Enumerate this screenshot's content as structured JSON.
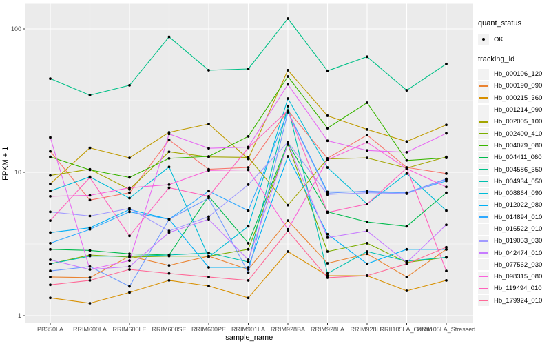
{
  "legend": {
    "quant_status_title": "quant_status",
    "quant_status_items": [
      {
        "label": "OK",
        "marker": "point-icon",
        "marker_color": "#000000"
      }
    ],
    "tracking_title": "tracking_id"
  },
  "colors": {
    "panel_background": "#EBEBEB",
    "grid": "#FFFFFF",
    "tick_text": "#4D4D4D",
    "axis_title_text": "#000000",
    "tick_mark": "#333333",
    "point": "#000000",
    "legend_key_background": "#F2F2F2"
  },
  "chart_data": {
    "type": "line",
    "title": "",
    "xlabel": "sample_name",
    "ylabel": "FPKM + 1",
    "y_scale": "log10",
    "ylim": [
      0.88,
      151
    ],
    "y_major_ticks": [
      100,
      10,
      1
    ],
    "y_tick_labels": [
      "100",
      "10",
      "1"
    ],
    "y_minor_ticks": [
      31.623,
      3.1623
    ],
    "grid": true,
    "legend_position": "right",
    "categories": [
      "PB350LA",
      "RRIM600LA",
      "RRIM600LE",
      "RRIM600SE",
      "RRIM600PE",
      "RRIM901LA",
      "RRIM928BA",
      "RRIM928LA",
      "RRIM928LE",
      "RRII105LA_Control",
      "RRII105LA_Stressed"
    ],
    "series": [
      {
        "name": "Hb_000106_120",
        "color": "#F8766D",
        "values": [
          14,
          6.4,
          7.2,
          16.8,
          10.5,
          10.8,
          27,
          12.5,
          18.2,
          10.8,
          9.8
        ]
      },
      {
        "name": "Hb_000190_090",
        "color": "#EA8331",
        "values": [
          1.86,
          1.84,
          2.6,
          2.24,
          2.6,
          2.1,
          4.6,
          2.32,
          2.7,
          1.86,
          2.9
        ]
      },
      {
        "name": "Hb_000215_360",
        "color": "#D89000",
        "values": [
          1.33,
          1.22,
          1.45,
          1.76,
          1.61,
          1.33,
          2.8,
          1.9,
          1.9,
          1.49,
          1.76
        ]
      },
      {
        "name": "Hb_001214_090",
        "color": "#C09B00",
        "values": [
          8.3,
          14.8,
          12.6,
          19,
          21.7,
          12.4,
          51.5,
          24.8,
          19.9,
          16.4,
          21.4
        ]
      },
      {
        "name": "Hb_002005_100",
        "color": "#A3A500",
        "values": [
          9.5,
          10.5,
          7.6,
          13.9,
          12.8,
          12.7,
          5.9,
          12.4,
          12.6,
          10.7,
          12.8
        ]
      },
      {
        "name": "Hb_002400_410",
        "color": "#7CAE00",
        "values": [
          2.3,
          2.65,
          2.56,
          2.6,
          2.6,
          2.9,
          15.6,
          2.8,
          3.2,
          2.35,
          2.55
        ]
      },
      {
        "name": "Hb_004079_080",
        "color": "#39B600",
        "values": [
          12.8,
          10.4,
          9.2,
          12.5,
          12.9,
          17.8,
          46.6,
          20.3,
          30.6,
          12.1,
          12.6
        ]
      },
      {
        "name": "Hb_004411_060",
        "color": "#00BB4E",
        "values": [
          2.9,
          2.85,
          2.7,
          2.65,
          6.8,
          3.2,
          16,
          5.3,
          4.5,
          4.2,
          7.2
        ]
      },
      {
        "name": "Hb_004586_350",
        "color": "#00C087",
        "values": [
          45,
          34.5,
          40.4,
          88,
          51.5,
          52.6,
          118,
          51,
          64,
          37.3,
          57
        ]
      },
      {
        "name": "Hb_004934_050",
        "color": "#00C0AF",
        "values": [
          2.3,
          2.6,
          2.6,
          2.65,
          2.74,
          2.37,
          29,
          1.97,
          2.8,
          2.4,
          2.55
        ]
      },
      {
        "name": "Hb_008864_090",
        "color": "#00BCD8",
        "values": [
          7.4,
          9.3,
          6.6,
          10.9,
          2.56,
          4.2,
          32.7,
          10.8,
          6.0,
          9.8,
          5.4
        ]
      },
      {
        "name": "Hb_012022_080",
        "color": "#00B0F6",
        "values": [
          3.8,
          4.1,
          5.5,
          4.7,
          2.17,
          2.17,
          12.9,
          3.7,
          2.3,
          2.9,
          2.9
        ]
      },
      {
        "name": "Hb_014894_010",
        "color": "#2FA9FF",
        "values": [
          3.2,
          4.0,
          5.3,
          4.7,
          7.4,
          5.4,
          26.5,
          7.3,
          7.3,
          7.2,
          8.7
        ]
      },
      {
        "name": "Hb_016522_010",
        "color": "#6E9AFF",
        "values": [
          2.05,
          2.2,
          1.6,
          4.7,
          6.6,
          2.0,
          26.2,
          7.15,
          7.4,
          7.2,
          9.0
        ]
      },
      {
        "name": "Hb_019053_030",
        "color": "#A29BFF",
        "values": [
          5.3,
          4.95,
          5.6,
          3.9,
          4.9,
          8.2,
          16.2,
          7.0,
          7.2,
          7.1,
          8.9
        ]
      },
      {
        "name": "Hb_042474_010",
        "color": "#C77CFF",
        "values": [
          2.45,
          2.1,
          2.2,
          3.8,
          4.7,
          2.45,
          15.8,
          3.5,
          3.9,
          2.35,
          4.3
        ]
      },
      {
        "name": "Hb_077562_030",
        "color": "#E76BF3",
        "values": [
          17.5,
          2.1,
          2.42,
          18.5,
          14.7,
          15.0,
          41,
          16.6,
          14.2,
          13.8,
          18.7
        ]
      },
      {
        "name": "Hb_098315_080",
        "color": "#FA62DB",
        "values": [
          6.8,
          6.9,
          7.8,
          8.2,
          10.3,
          10.4,
          4.0,
          12.2,
          16.2,
          10.6,
          7.9
        ]
      },
      {
        "name": "Hb_119494_010",
        "color": "#FF62BC",
        "values": [
          4.6,
          9.2,
          3.6,
          7.8,
          6.8,
          14.8,
          27,
          5.25,
          6.0,
          10.7,
          2.05
        ]
      },
      {
        "name": "Hb_179924_010",
        "color": "#FF6A98",
        "values": [
          1.64,
          1.76,
          2.1,
          1.97,
          1.86,
          1.76,
          3.9,
          1.84,
          1.9,
          2.3,
          3.0
        ]
      }
    ]
  }
}
